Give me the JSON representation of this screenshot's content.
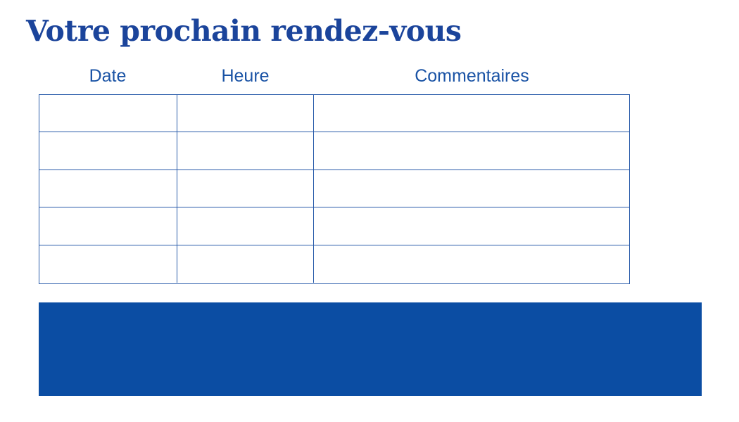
{
  "page": {
    "title": "Votre prochain rendez-vous"
  },
  "table": {
    "columns": [
      {
        "key": "date",
        "label": "Date"
      },
      {
        "key": "heure",
        "label": "Heure"
      },
      {
        "key": "commentaires",
        "label": "Commentaires"
      }
    ],
    "rows": [
      {
        "cells": [
          "",
          "",
          ""
        ]
      },
      {
        "cells": [
          "",
          "",
          ""
        ]
      },
      {
        "cells": [
          "",
          "",
          ""
        ]
      },
      {
        "cells": [
          "",
          "",
          ""
        ]
      },
      {
        "cells": [
          "",
          "",
          ""
        ]
      }
    ]
  },
  "footer": {
    "band_label": ""
  },
  "colors": {
    "title": "#1b449b",
    "header": "#1a53a5",
    "border": "#2a5caa",
    "band": "#0b4da3"
  }
}
